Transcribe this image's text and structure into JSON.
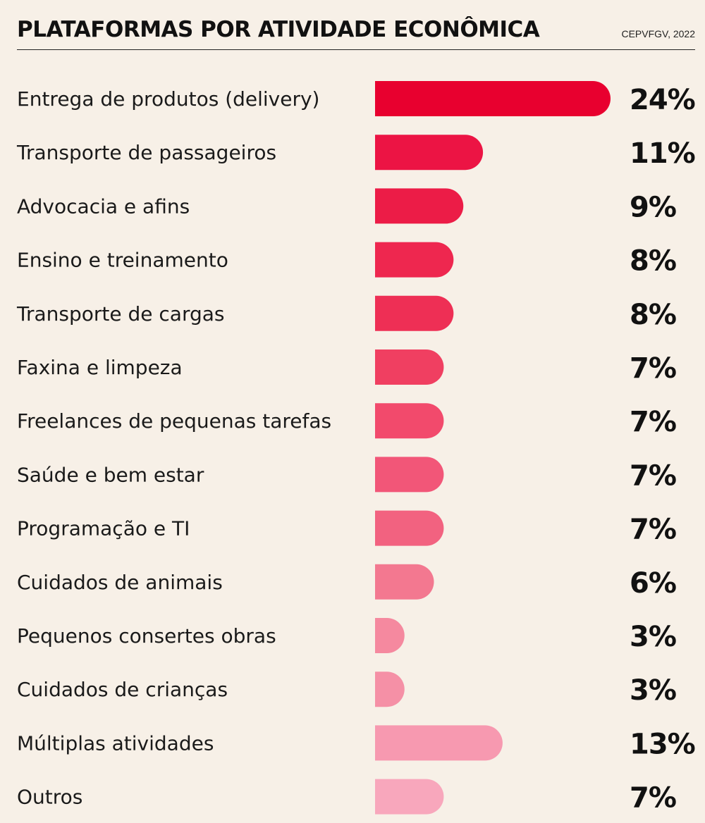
{
  "header": {
    "title": "PLATAFORMAS POR ATIVIDADE ECONÔMICA",
    "source": "CEPVFGV, 2022"
  },
  "chart_data": {
    "type": "bar",
    "orientation": "horizontal",
    "title": "PLATAFORMAS POR ATIVIDADE ECONÔMICA",
    "xlabel": "",
    "ylabel": "",
    "xlim": [
      0,
      24
    ],
    "grid": false,
    "categories": [
      "Entrega de produtos (delivery)",
      "Transporte de passageiros",
      "Advocacia e afins",
      "Ensino e treinamento",
      "Transporte de cargas",
      "Faxina e limpeza",
      "Freelances de pequenas tarefas",
      "Saúde e bem estar",
      "Programação e TI",
      "Cuidados de animais",
      "Pequenos consertes obras",
      "Cuidados de crianças",
      "Múltiplas atividades",
      "Outros"
    ],
    "values": [
      24,
      11,
      9,
      8,
      8,
      7,
      7,
      7,
      7,
      6,
      3,
      3,
      13,
      7
    ],
    "value_labels": [
      "24%",
      "11%",
      "9%",
      "8%",
      "8%",
      "7%",
      "7%",
      "7%",
      "7%",
      "6%",
      "3%",
      "3%",
      "13%",
      "7%"
    ],
    "colors": [
      "#e8002f",
      "#ec1444",
      "#ec1c47",
      "#ee274f",
      "#ee2f55",
      "#f03f61",
      "#f24a6c",
      "#f25678",
      "#f26280",
      "#f37890",
      "#f5899f",
      "#f590a6",
      "#f799b0",
      "#f8a7bc"
    ]
  }
}
